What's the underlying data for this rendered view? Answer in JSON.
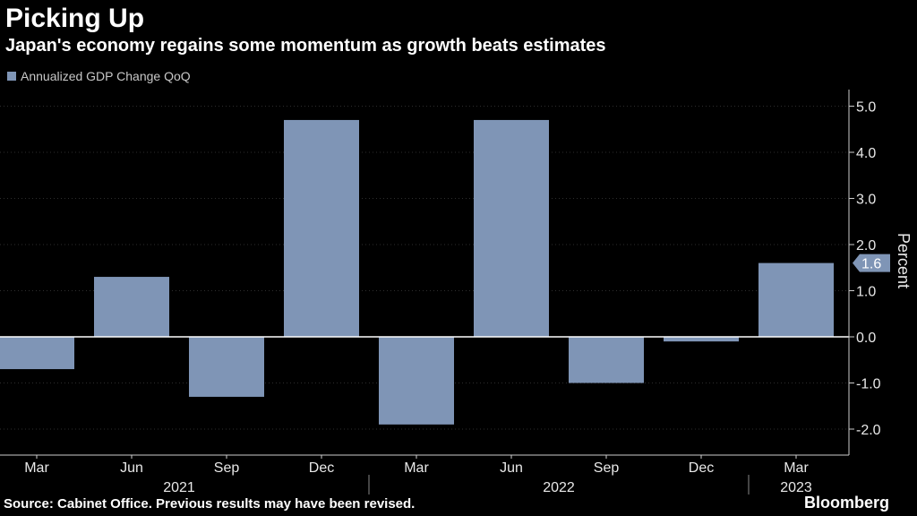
{
  "title": "Picking Up",
  "subtitle": "Japan's economy regains some momentum as growth beats estimates",
  "source": "Source: Cabinet Office. Previous results may have been revised.",
  "brand": "Bloomberg",
  "colors": {
    "bar": "#7f95b6",
    "background": "#000000",
    "text": "#ffffff",
    "grid": "#2e2e2e"
  },
  "chart_data": {
    "type": "bar",
    "title": "Picking Up",
    "subtitle": "Japan's economy regains some momentum as growth beats estimates",
    "series": [
      {
        "name": "Annualized GDP Change QoQ",
        "values": [
          -0.7,
          1.3,
          -1.3,
          4.7,
          -1.9,
          4.7,
          -1.0,
          -0.1,
          1.6
        ]
      }
    ],
    "categories": [
      "Mar",
      "Jun",
      "Sep",
      "Dec",
      "Mar",
      "Jun",
      "Sep",
      "Dec",
      "Mar"
    ],
    "years": [
      {
        "label": "2021",
        "start": 0,
        "end": 3
      },
      {
        "label": "2022",
        "start": 4,
        "end": 7
      },
      {
        "label": "2023",
        "start": 8,
        "end": 8
      }
    ],
    "ylabel": "Percent",
    "xlabel": "",
    "ylim": [
      -2.5,
      5.5
    ],
    "yticks": [
      -2.0,
      -1.0,
      0.0,
      1.0,
      2.0,
      3.0,
      4.0,
      5.0
    ],
    "last_value_label": "1.6",
    "grid": true,
    "legend": "top-left"
  }
}
